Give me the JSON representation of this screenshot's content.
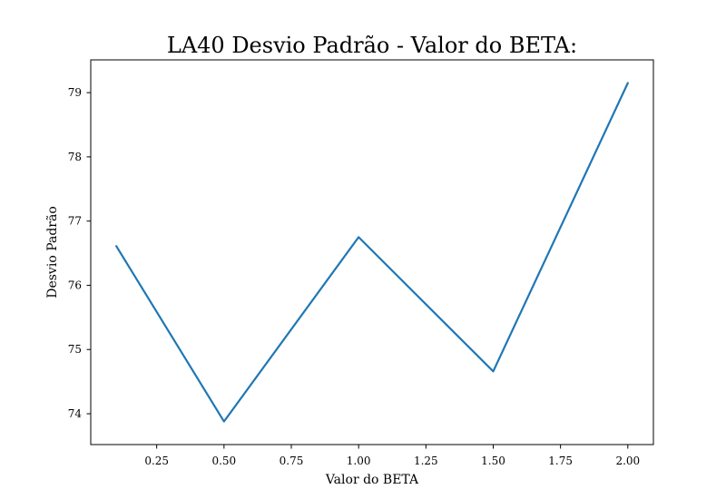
{
  "chart_data": {
    "type": "line",
    "title": "LA40 Desvio Padrão - Valor do BETA:",
    "xlabel": "Valor do BETA",
    "ylabel": "Desvio Padrão",
    "x": [
      0.1,
      0.5,
      1.0,
      1.5,
      2.0
    ],
    "series": [
      {
        "values": [
          76.61,
          73.88,
          76.75,
          74.66,
          79.15
        ],
        "color": "#1f77b4"
      }
    ],
    "xlim": [
      0.005,
      2.095
    ],
    "ylim": [
      73.52,
      79.51
    ],
    "xticks": [
      0.25,
      0.5,
      0.75,
      1.0,
      1.25,
      1.5,
      1.75,
      2.0
    ],
    "xtick_labels": [
      "0.25",
      "0.50",
      "0.75",
      "1.00",
      "1.25",
      "1.50",
      "1.75",
      "2.00"
    ],
    "yticks": [
      74,
      75,
      76,
      77,
      78,
      79
    ],
    "ytick_labels": [
      "74",
      "75",
      "76",
      "77",
      "78",
      "79"
    ],
    "grid": false,
    "legend": "none"
  }
}
